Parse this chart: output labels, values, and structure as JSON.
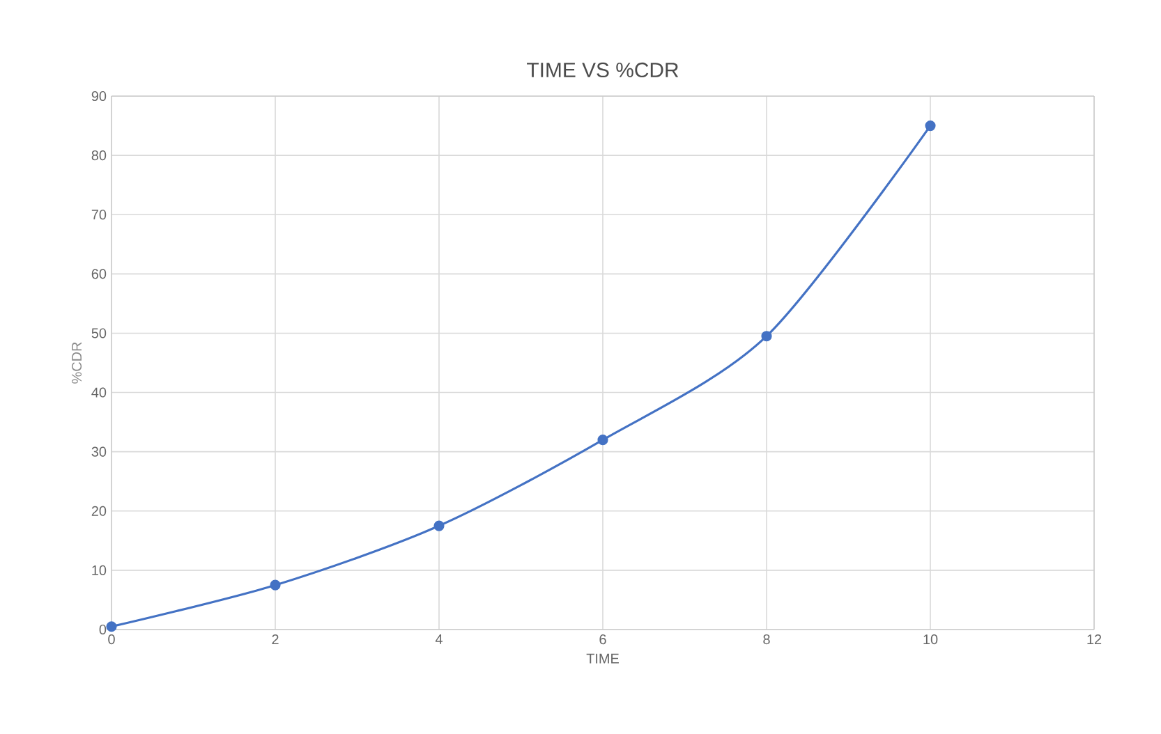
{
  "chart_data": {
    "type": "line",
    "title": "TIME VS %CDR",
    "xlabel": "TIME",
    "ylabel": "%CDR",
    "x": [
      0,
      2,
      4,
      6,
      8,
      10
    ],
    "series": [
      {
        "color": "#4472c4",
        "values": [
          0.5,
          7.5,
          17.5,
          32,
          49.5,
          85
        ]
      }
    ],
    "xlim": [
      0,
      12
    ],
    "xticks": [
      0,
      2,
      4,
      6,
      8,
      10,
      12
    ],
    "ylim": [
      0,
      90
    ],
    "yticks": [
      0,
      10,
      20,
      30,
      40,
      50,
      60,
      70,
      80,
      90
    ],
    "grid": true,
    "marker": "circle",
    "line_style": "solid"
  }
}
